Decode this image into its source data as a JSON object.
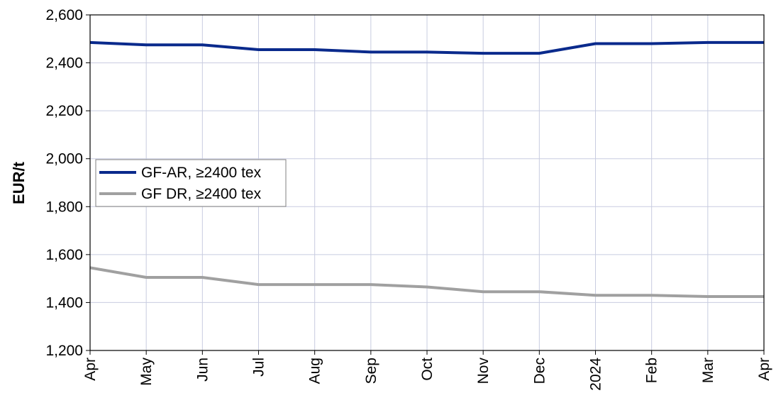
{
  "chart_data": {
    "type": "line",
    "ylabel": "EUR/t",
    "xlabel": "",
    "ylim": [
      1200,
      2600
    ],
    "yticks": [
      1200,
      1400,
      1600,
      1800,
      2000,
      2200,
      2400,
      2600
    ],
    "ytick_labels": [
      "1,200",
      "1,400",
      "1,600",
      "1,800",
      "2,000",
      "2,200",
      "2,400",
      "2,600"
    ],
    "categories": [
      "Apr",
      "May",
      "Jun",
      "Jul",
      "Aug",
      "Sep",
      "Oct",
      "Nov",
      "Dec",
      "2024",
      "Feb",
      "Mar",
      "Apr"
    ],
    "grid": true,
    "legend_position": "left-middle",
    "series": [
      {
        "name": "GF-AR, ≥2400 tex",
        "color": "#0a2a8c",
        "values": [
          2485,
          2475,
          2475,
          2455,
          2455,
          2445,
          2445,
          2440,
          2440,
          2480,
          2480,
          2485,
          2485
        ]
      },
      {
        "name": "GF DR, ≥2400 tex",
        "color": "#a0a0a0",
        "values": [
          1545,
          1505,
          1505,
          1475,
          1475,
          1475,
          1465,
          1445,
          1445,
          1430,
          1430,
          1425,
          1425
        ]
      }
    ]
  }
}
